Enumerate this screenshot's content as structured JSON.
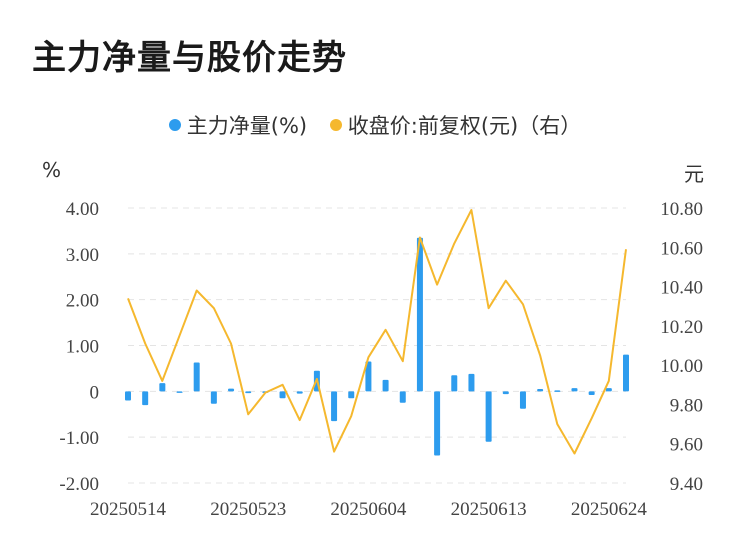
{
  "title": "主力净量与股价走势",
  "legend": {
    "series1": "主力净量(%)",
    "series2": "收盘价:前复权(元)（右）"
  },
  "units": {
    "left": "%",
    "right": "元"
  },
  "colors": {
    "bar": "#2d9cee",
    "line": "#f5b82e",
    "grid": "#e4e4e4"
  },
  "chart_data": {
    "type": "bar+line",
    "x_tick_labels": [
      "20250514",
      "20250523",
      "20250604",
      "20250613",
      "20250624"
    ],
    "x_tick_indices": [
      0,
      7,
      14,
      21,
      28
    ],
    "n_points": 30,
    "y_left": {
      "min": -2.0,
      "max": 4.0,
      "ticks": [
        "-2.00",
        "-1.00",
        "0",
        "1.00",
        "2.00",
        "3.00",
        "4.00"
      ]
    },
    "y_right": {
      "min": 9.4,
      "max": 10.8,
      "ticks": [
        "9.40",
        "9.60",
        "9.80",
        "10.00",
        "10.20",
        "10.40",
        "10.60",
        "10.80"
      ]
    },
    "series": [
      {
        "name": "主力净量(%)",
        "type": "bar",
        "values": [
          -0.2,
          -0.3,
          0.18,
          -0.03,
          0.63,
          -0.27,
          0.06,
          -0.04,
          -0.02,
          -0.15,
          -0.05,
          0.45,
          -0.65,
          -0.15,
          0.65,
          0.25,
          -0.25,
          3.35,
          -1.4,
          0.35,
          0.38,
          -1.1,
          -0.06,
          -0.38,
          0.05,
          0.02,
          0.07,
          -0.08,
          0.07,
          0.8
        ]
      },
      {
        "name": "收盘价:前复权(元)（右）",
        "type": "line",
        "values": [
          10.34,
          10.11,
          9.92,
          10.15,
          10.38,
          10.29,
          10.11,
          9.75,
          9.86,
          9.9,
          9.72,
          9.93,
          9.56,
          9.74,
          10.04,
          10.18,
          10.02,
          10.65,
          10.41,
          10.62,
          10.79,
          10.29,
          10.43,
          10.31,
          10.05,
          9.7,
          9.55,
          9.73,
          9.92,
          10.59
        ]
      }
    ]
  }
}
